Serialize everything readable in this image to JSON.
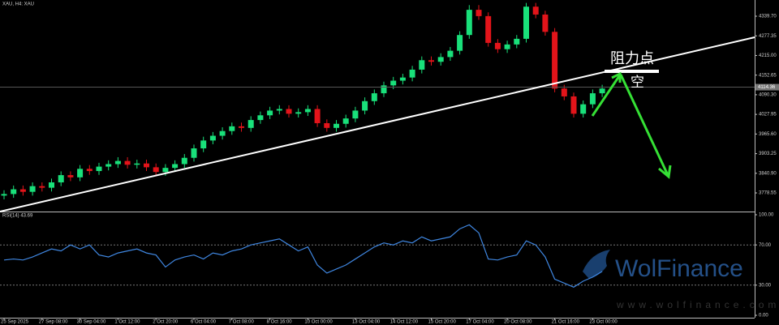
{
  "chart_data": [
    {
      "type": "candlestick",
      "title": "XAU, H4: XAU",
      "up_color": "#19e07a",
      "down_color": "#e3141a",
      "open": [
        3770,
        3775,
        3790,
        3782,
        3800,
        3795,
        3812,
        3835,
        3828,
        3855,
        3848,
        3862,
        3870,
        3880,
        3868,
        3872,
        3860,
        3845,
        3858,
        3870,
        3890,
        3920,
        3945,
        3960,
        3975,
        3990,
        3985,
        4010,
        4025,
        4040,
        4045,
        4030,
        4035,
        4045,
        4000,
        3985,
        3998,
        4015,
        4040,
        4070,
        4095,
        4120,
        4135,
        4145,
        4170,
        4200,
        4195,
        4210,
        4230,
        4280,
        4360,
        4340,
        4255,
        4235,
        4250,
        4268,
        4370,
        4345,
        4290,
        4110,
        4085,
        4030,
        4060,
        4095
      ],
      "high": [
        3787,
        3802,
        3802,
        3812,
        3812,
        3824,
        3847,
        3847,
        3867,
        3867,
        3874,
        3882,
        3892,
        3892,
        3884,
        3884,
        3872,
        3870,
        3882,
        3902,
        3932,
        3957,
        3972,
        3987,
        4002,
        4002,
        4022,
        4037,
        4052,
        4057,
        4057,
        4047,
        4057,
        4057,
        4012,
        4010,
        4027,
        4052,
        4082,
        4107,
        4132,
        4147,
        4157,
        4182,
        4212,
        4212,
        4222,
        4242,
        4292,
        4375,
        4375,
        4352,
        4267,
        4262,
        4280,
        4382,
        4382,
        4357,
        4302,
        4122,
        4097,
        4072,
        4107,
        4122
      ],
      "low": [
        3758,
        3763,
        3770,
        3770,
        3783,
        3783,
        3800,
        3816,
        3816,
        3836,
        3836,
        3850,
        3858,
        3856,
        3856,
        3848,
        3833,
        3833,
        3846,
        3858,
        3878,
        3908,
        3933,
        3948,
        3963,
        3973,
        3973,
        3998,
        4013,
        4028,
        4018,
        4018,
        4023,
        3988,
        3973,
        3973,
        3986,
        4003,
        4028,
        4058,
        4083,
        4108,
        4123,
        4133,
        4158,
        4183,
        4183,
        4198,
        4218,
        4268,
        4328,
        4243,
        4223,
        4223,
        4238,
        4256,
        4333,
        4278,
        4098,
        4073,
        4018,
        4018,
        4048,
        4083
      ],
      "close": [
        3775,
        3790,
        3782,
        3800,
        3795,
        3812,
        3835,
        3828,
        3855,
        3848,
        3862,
        3870,
        3880,
        3868,
        3872,
        3860,
        3845,
        3858,
        3870,
        3890,
        3920,
        3945,
        3960,
        3975,
        3990,
        3985,
        4010,
        4025,
        4040,
        4045,
        4030,
        4035,
        4045,
        4000,
        3985,
        3998,
        4015,
        4040,
        4070,
        4095,
        4120,
        4135,
        4145,
        4170,
        4200,
        4195,
        4210,
        4230,
        4280,
        4360,
        4340,
        4255,
        4235,
        4250,
        4268,
        4370,
        4345,
        4290,
        4110,
        4085,
        4030,
        4060,
        4095,
        4110
      ],
      "ylim": [
        3719.4,
        4391.2
      ],
      "yticks": [
        {
          "value": 4339.7,
          "label": "4339.70"
        },
        4277.35,
        {
          "value": 4215,
          "label": "4215.00"
        },
        4152.65,
        {
          "value": 4090.3,
          "label": "4090.30"
        },
        4027.95,
        {
          "value": 3965.6,
          "label": "3965.60"
        },
        3903.25,
        {
          "value": 3840.9,
          "label": "3840.90"
        },
        3778.55
      ],
      "current_price": {
        "value": 4114.36,
        "label": "4114.36"
      },
      "xticks": [
        {
          "value": 0,
          "label": "25 Sep 2025"
        },
        {
          "value": 4,
          "label": "27 Sep 08:00"
        },
        {
          "value": 8,
          "label": "30 Sep 04:00"
        },
        {
          "value": 12,
          "label": "1 Oct 12:00"
        },
        {
          "value": 16,
          "label": "2 Oct 20:00"
        },
        {
          "value": 20,
          "label": "6 Oct 04:00"
        },
        {
          "value": 24,
          "label": "7 Oct 08:00"
        },
        {
          "value": 28,
          "label": "8 Oct 16:00"
        },
        {
          "value": 32,
          "label": "10 Oct 00:00"
        },
        {
          "value": 37,
          "label": "13 Oct 04:00"
        },
        {
          "value": 41,
          "label": "14 Oct 12:00"
        },
        {
          "value": 45,
          "label": "15 Oct 20:00"
        },
        {
          "value": 49,
          "label": "17 Oct 04:00"
        },
        {
          "value": 53,
          "label": "20 Oct 08:00"
        },
        {
          "value": 58,
          "label": "21 Oct 16:00"
        },
        {
          "value": 62,
          "label": "23 Oct 00:00"
        }
      ],
      "annotations": {
        "resistance": "阻力点",
        "short": "空"
      }
    },
    {
      "type": "line",
      "title": "RSI(14) 43.69",
      "color": "#3f86e0",
      "values": [
        55,
        56,
        55,
        58,
        62,
        66,
        64,
        70,
        66,
        70,
        60,
        58,
        62,
        64,
        66,
        62,
        60,
        48,
        55,
        58,
        60,
        56,
        62,
        60,
        64,
        66,
        70,
        72,
        74,
        76,
        70,
        64,
        68,
        50,
        42,
        46,
        50,
        56,
        62,
        68,
        72,
        70,
        74,
        72,
        78,
        74,
        76,
        78,
        86,
        90,
        82,
        56,
        55,
        58,
        60,
        74,
        70,
        58,
        36,
        32,
        28,
        34,
        38,
        43.69
      ],
      "ylim": [
        -2.4,
        102.4
      ],
      "yticks": [
        {
          "value": 100,
          "label": "100.00"
        },
        {
          "value": 70,
          "label": "70.00"
        },
        {
          "value": 30,
          "label": "30.00"
        },
        {
          "value": 0,
          "label": "0.00"
        }
      ],
      "levels": [
        70,
        30
      ]
    }
  ],
  "watermark": {
    "brand": "WolFinance",
    "url": "www.wolfinance.com"
  }
}
